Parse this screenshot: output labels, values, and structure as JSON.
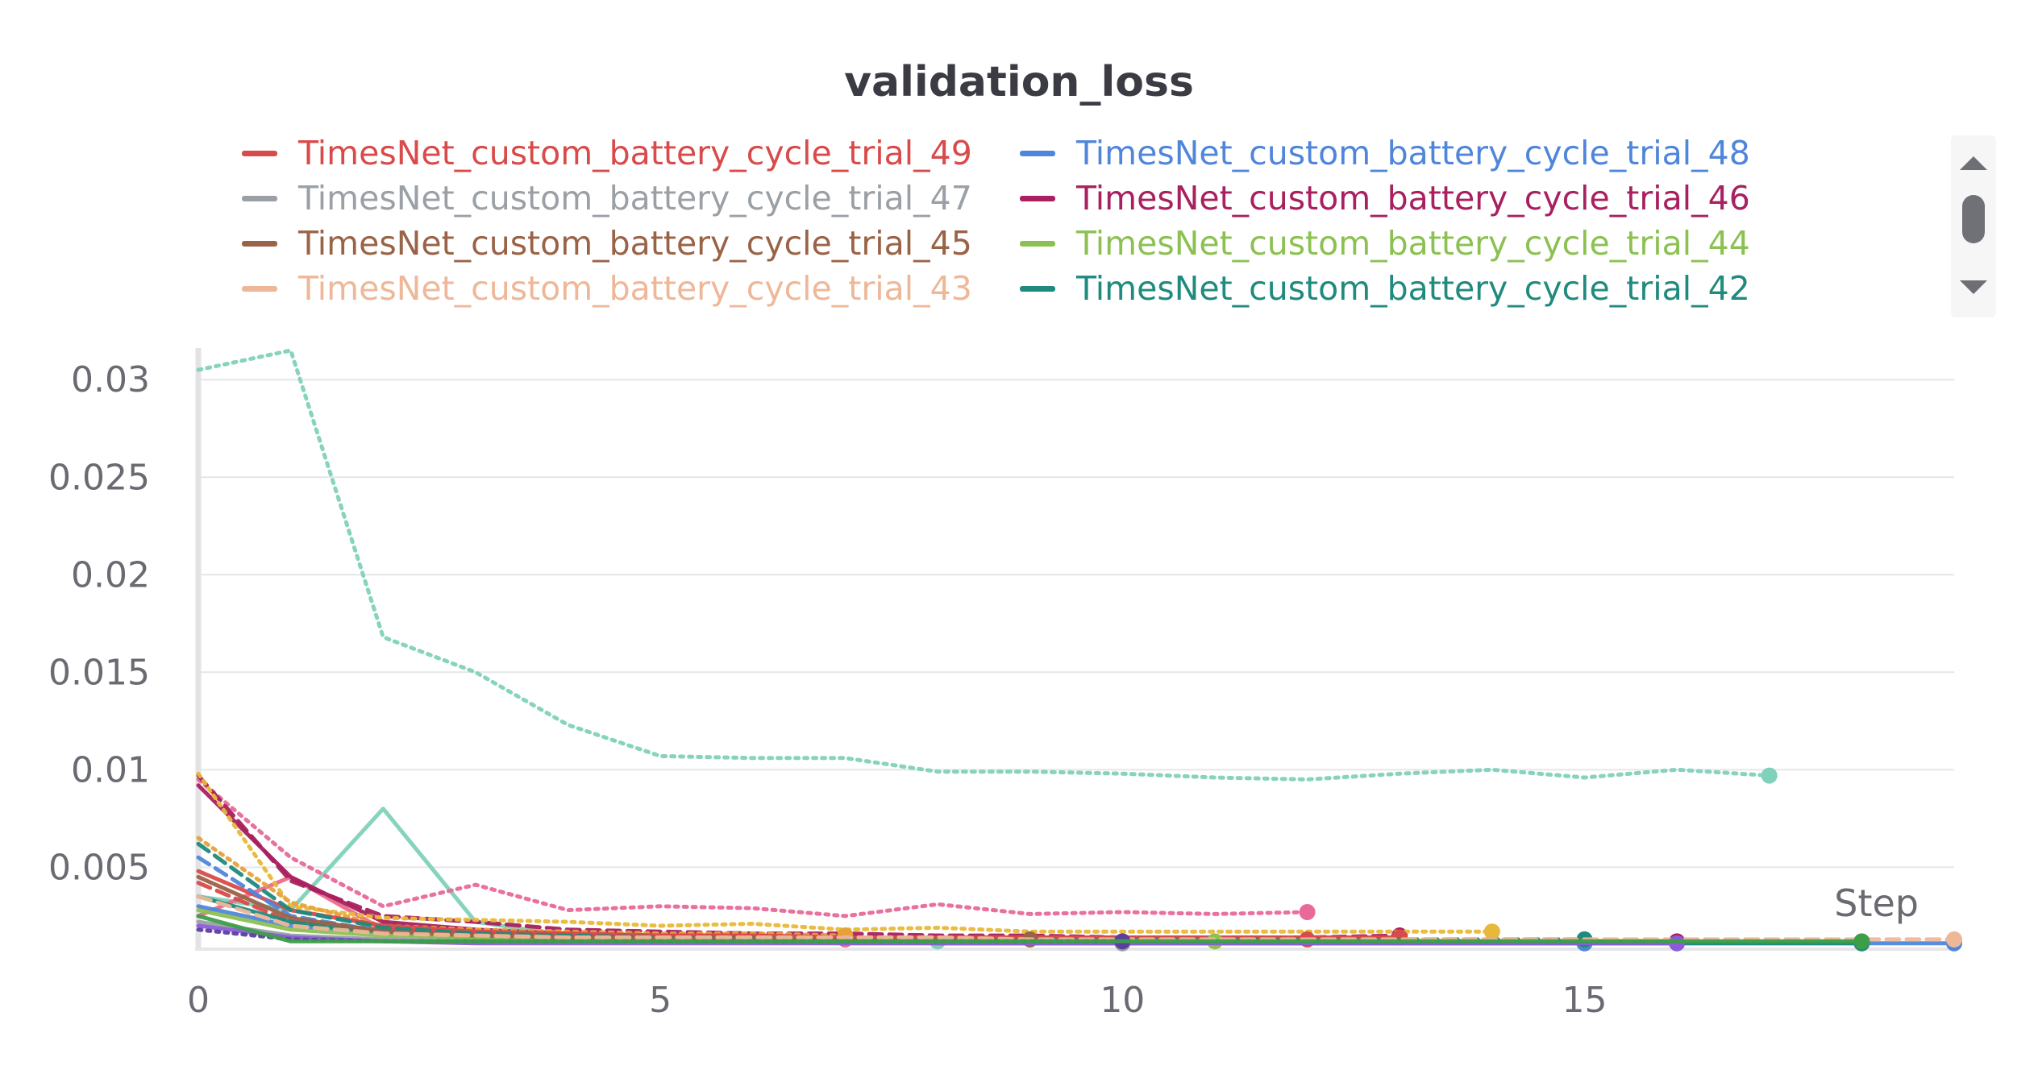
{
  "chart_data": {
    "type": "line",
    "title": "validation_loss",
    "xlabel": "Step",
    "ylabel": "",
    "xlim": [
      0,
      19
    ],
    "ylim": [
      0.0008,
      0.0322
    ],
    "xticks": [
      "0",
      "5",
      "10",
      "15"
    ],
    "xtick_values": [
      0,
      5,
      10,
      15
    ],
    "yticks": [
      "0.005",
      "0.01",
      "0.015",
      "0.02",
      "0.025",
      "0.03"
    ],
    "ytick_values": [
      0.005,
      0.01,
      0.015,
      0.02,
      0.025,
      0.03
    ],
    "grid": true,
    "legend_position": "top",
    "legend": [
      {
        "name": "TimesNet_custom_battery_cycle_trial_49",
        "color": "#d94a4a"
      },
      {
        "name": "TimesNet_custom_battery_cycle_trial_48",
        "color": "#4f86db"
      },
      {
        "name": "TimesNet_custom_battery_cycle_trial_47",
        "color": "#9aa0a6"
      },
      {
        "name": "TimesNet_custom_battery_cycle_trial_46",
        "color": "#a8205f"
      },
      {
        "name": "TimesNet_custom_battery_cycle_trial_45",
        "color": "#9a6347"
      },
      {
        "name": "TimesNet_custom_battery_cycle_trial_44",
        "color": "#8cc152"
      },
      {
        "name": "TimesNet_custom_battery_cycle_trial_43",
        "color": "#eeb898"
      },
      {
        "name": "TimesNet_custom_battery_cycle_trial_42",
        "color": "#1f8a7d"
      }
    ],
    "series": [
      {
        "color": "#7fd1ba",
        "dash": "dotted",
        "x": [
          0,
          1,
          2,
          3,
          4,
          5,
          6,
          7,
          8,
          9,
          10,
          11,
          12,
          13,
          14,
          15,
          16,
          17
        ],
        "y": [
          0.0305,
          0.0315,
          0.0168,
          0.015,
          0.0123,
          0.0107,
          0.0106,
          0.0106,
          0.0099,
          0.0099,
          0.0098,
          0.0096,
          0.0095,
          0.0098,
          0.01,
          0.0096,
          0.01,
          0.0097
        ]
      },
      {
        "color": "#7fd1ba",
        "dash": "solid",
        "x": [
          0,
          1,
          2,
          3,
          4,
          5,
          6,
          7,
          8
        ],
        "y": [
          0.0035,
          0.0028,
          0.008,
          0.0022,
          0.0015,
          0.0014,
          0.0013,
          0.0013,
          0.0012
        ]
      },
      {
        "color": "#e8699a",
        "dash": "dotted",
        "x": [
          0,
          1,
          2,
          3,
          4,
          5,
          6,
          7,
          8,
          9,
          10,
          11,
          12
        ],
        "y": [
          0.0095,
          0.0055,
          0.003,
          0.0041,
          0.0028,
          0.003,
          0.0029,
          0.0025,
          0.0031,
          0.0026,
          0.0027,
          0.0026,
          0.0027
        ]
      },
      {
        "color": "#ec6a8a",
        "dash": "solid",
        "x": [
          0,
          1,
          2,
          3,
          4,
          5,
          6,
          7
        ],
        "y": [
          0.0025,
          0.0045,
          0.0018,
          0.0016,
          0.0015,
          0.0014,
          0.0013,
          0.0013
        ]
      },
      {
        "color": "#a8205f",
        "dash": "dashed",
        "x": [
          0,
          1,
          2,
          3,
          4,
          5,
          6,
          7,
          8,
          9,
          10,
          11,
          12,
          13
        ],
        "y": [
          0.0097,
          0.0043,
          0.0025,
          0.0022,
          0.0018,
          0.0017,
          0.0016,
          0.0016,
          0.0015,
          0.0015,
          0.0014,
          0.0014,
          0.0014,
          0.0015
        ]
      },
      {
        "color": "#a8205f",
        "dash": "solid",
        "x": [
          0,
          1,
          2,
          3,
          4,
          5,
          6,
          7,
          8,
          9,
          10,
          11,
          12,
          13,
          14,
          15,
          16
        ],
        "y": [
          0.0092,
          0.0045,
          0.0022,
          0.0018,
          0.0016,
          0.0015,
          0.0014,
          0.0014,
          0.0013,
          0.0013,
          0.0013,
          0.0012,
          0.0012,
          0.0012,
          0.0012,
          0.0012,
          0.0012
        ]
      },
      {
        "color": "#e8b83a",
        "dash": "dotted",
        "x": [
          0,
          1,
          2,
          3,
          4,
          5,
          6,
          7,
          8,
          9,
          10,
          11,
          12,
          13,
          14
        ],
        "y": [
          0.0098,
          0.003,
          0.0024,
          0.0023,
          0.0022,
          0.002,
          0.0021,
          0.0018,
          0.0019,
          0.0017,
          0.0017,
          0.0017,
          0.0017,
          0.0017,
          0.0017
        ]
      },
      {
        "color": "#e8a13a",
        "dash": "dotted",
        "x": [
          0,
          1,
          2,
          3,
          4,
          5,
          6,
          7
        ],
        "y": [
          0.0065,
          0.0032,
          0.002,
          0.0018,
          0.0017,
          0.0016,
          0.0016,
          0.0015
        ]
      },
      {
        "color": "#d94a4a",
        "dash": "solid",
        "x": [
          0,
          1,
          2,
          3,
          4,
          5,
          6,
          7,
          8,
          9,
          10,
          11,
          12,
          13
        ],
        "y": [
          0.0048,
          0.0028,
          0.002,
          0.0017,
          0.0016,
          0.0015,
          0.0015,
          0.0014,
          0.0014,
          0.0014,
          0.0014,
          0.0014,
          0.0014,
          0.0014
        ]
      },
      {
        "color": "#d94a4a",
        "dash": "dashed",
        "x": [
          0,
          1,
          2,
          3,
          4,
          5,
          6,
          7,
          8,
          9,
          10,
          11,
          12
        ],
        "y": [
          0.0042,
          0.0022,
          0.0018,
          0.0016,
          0.0015,
          0.0015,
          0.0015,
          0.0014,
          0.0014,
          0.0014,
          0.0014,
          0.0014,
          0.0013
        ]
      },
      {
        "color": "#4f86db",
        "dash": "solid",
        "x": [
          0,
          1,
          2,
          3,
          4,
          5,
          6,
          7,
          8,
          9,
          10,
          11,
          12,
          13,
          14,
          15,
          16,
          17,
          18,
          19
        ],
        "y": [
          0.003,
          0.002,
          0.0016,
          0.0014,
          0.0013,
          0.0012,
          0.0012,
          0.0012,
          0.0011,
          0.0011,
          0.0011,
          0.0011,
          0.0011,
          0.0011,
          0.0011,
          0.0011,
          0.0011,
          0.0011,
          0.0011,
          0.0011
        ]
      },
      {
        "color": "#4f86db",
        "dash": "dashed",
        "x": [
          0,
          1,
          2,
          3,
          4,
          5,
          6,
          7,
          8,
          9,
          10,
          11,
          12,
          13,
          14,
          15
        ],
        "y": [
          0.0055,
          0.0025,
          0.0017,
          0.0015,
          0.0013,
          0.0012,
          0.0012,
          0.0012,
          0.0012,
          0.0011,
          0.0011,
          0.0011,
          0.0011,
          0.0011,
          0.0011,
          0.0011
        ]
      },
      {
        "color": "#1f8a7d",
        "dash": "dashed",
        "x": [
          0,
          1,
          2,
          3,
          4,
          5,
          6,
          7,
          8,
          9,
          10,
          11,
          12,
          13,
          14,
          15
        ],
        "y": [
          0.0062,
          0.0028,
          0.0019,
          0.0016,
          0.0015,
          0.0014,
          0.0014,
          0.0013,
          0.0013,
          0.0013,
          0.0013,
          0.0013,
          0.0013,
          0.0013,
          0.0013,
          0.0013
        ]
      },
      {
        "color": "#1f8a7d",
        "dash": "solid",
        "x": [
          0,
          1,
          2,
          3,
          4,
          5,
          6,
          7,
          8,
          9,
          10,
          11,
          12,
          13,
          14,
          15,
          16,
          17,
          18
        ],
        "y": [
          0.0035,
          0.0022,
          0.0016,
          0.0014,
          0.0013,
          0.0012,
          0.0012,
          0.0012,
          0.0011,
          0.0011,
          0.0011,
          0.0011,
          0.0011,
          0.0011,
          0.0011,
          0.0011,
          0.0011,
          0.0011,
          0.0011
        ]
      },
      {
        "color": "#8cc152",
        "dash": "solid",
        "x": [
          0,
          1,
          2,
          3,
          4,
          5,
          6,
          7,
          8,
          9,
          10,
          11
        ],
        "y": [
          0.0028,
          0.0018,
          0.0015,
          0.0014,
          0.0013,
          0.0013,
          0.0012,
          0.0012,
          0.0012,
          0.0012,
          0.0012,
          0.0012
        ]
      },
      {
        "color": "#9a6347",
        "dash": "solid",
        "x": [
          0,
          1,
          2,
          3,
          4,
          5,
          6,
          7,
          8,
          9
        ],
        "y": [
          0.0045,
          0.0024,
          0.0017,
          0.0015,
          0.0014,
          0.0013,
          0.0013,
          0.0013,
          0.0013,
          0.0013
        ]
      },
      {
        "color": "#9aa0a6",
        "dash": "solid",
        "x": [
          0,
          1,
          2,
          3,
          4,
          5,
          6,
          7,
          8,
          9,
          10
        ],
        "y": [
          0.0022,
          0.0015,
          0.0013,
          0.0012,
          0.0012,
          0.0012,
          0.0012,
          0.0011,
          0.0011,
          0.0011,
          0.0011
        ]
      },
      {
        "color": "#eeb898",
        "dash": "dashed",
        "x": [
          0,
          1,
          2,
          3,
          4,
          5,
          6,
          7,
          8,
          9,
          10,
          11,
          12,
          13,
          14,
          15,
          16,
          17,
          18,
          19
        ],
        "y": [
          0.0035,
          0.002,
          0.0016,
          0.0015,
          0.0014,
          0.0014,
          0.0014,
          0.0014,
          0.0014,
          0.0013,
          0.0013,
          0.0013,
          0.0013,
          0.0013,
          0.0013,
          0.0013,
          0.0013,
          0.0013,
          0.0013,
          0.0013
        ]
      },
      {
        "color": "#8b5cd6",
        "dash": "solid",
        "x": [
          0,
          1,
          2,
          3,
          4,
          5,
          6,
          7,
          8,
          9,
          10,
          11,
          12,
          13,
          14,
          15,
          16
        ],
        "y": [
          0.002,
          0.0014,
          0.0012,
          0.0011,
          0.0011,
          0.0011,
          0.0011,
          0.0011,
          0.0011,
          0.0011,
          0.0011,
          0.0011,
          0.0011,
          0.0011,
          0.0011,
          0.0011,
          0.0011
        ]
      },
      {
        "color": "#5a3f9e",
        "dash": "dotted",
        "x": [
          0,
          1,
          2,
          3,
          4,
          5,
          6,
          7,
          8,
          9,
          10
        ],
        "y": [
          0.0018,
          0.0013,
          0.0012,
          0.0012,
          0.0012,
          0.0012,
          0.0012,
          0.0012,
          0.0012,
          0.0012,
          0.0012
        ]
      },
      {
        "color": "#3d9e4a",
        "dash": "solid",
        "x": [
          0,
          1,
          2,
          3,
          4,
          5,
          6,
          7,
          8,
          9,
          10,
          11,
          12,
          13,
          14,
          15,
          16,
          17,
          18
        ],
        "y": [
          0.0025,
          0.0012,
          0.0012,
          0.0012,
          0.0012,
          0.0012,
          0.0012,
          0.0012,
          0.0012,
          0.0012,
          0.0012,
          0.0012,
          0.0012,
          0.0012,
          0.0012,
          0.0012,
          0.0012,
          0.0012,
          0.0012
        ]
      }
    ]
  }
}
